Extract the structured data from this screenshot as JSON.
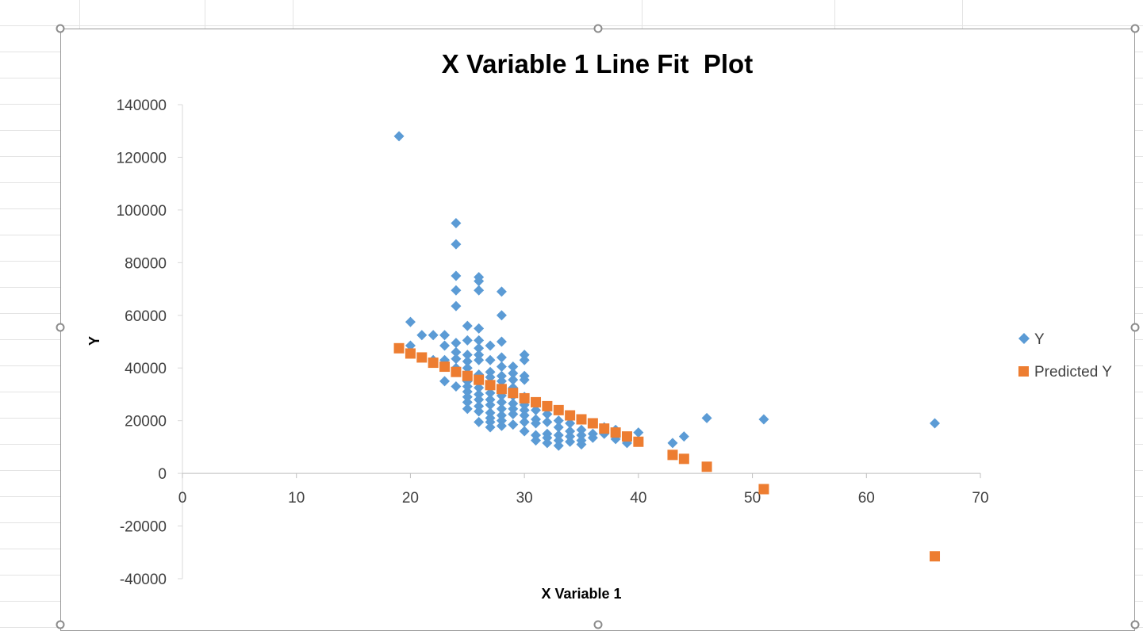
{
  "chart_data": {
    "type": "scatter",
    "title": "X Variable 1 Line Fit  Plot",
    "xlabel": "X Variable 1",
    "ylabel": "Y",
    "xlim": [
      0,
      70
    ],
    "ylim": [
      -40000,
      140000
    ],
    "xticks": [
      0,
      10,
      20,
      30,
      40,
      50,
      60,
      70
    ],
    "yticks": [
      -40000,
      -20000,
      0,
      20000,
      40000,
      60000,
      80000,
      100000,
      120000,
      140000
    ],
    "grid": false,
    "legend_position": "right",
    "series": [
      {
        "name": "Y",
        "marker": "diamond",
        "color": "#5B9BD5",
        "points": [
          [
            19,
            128000
          ],
          [
            20,
            57500
          ],
          [
            20,
            48500
          ],
          [
            21,
            52500
          ],
          [
            22,
            52500
          ],
          [
            22,
            43000
          ],
          [
            23,
            52500
          ],
          [
            23,
            48500
          ],
          [
            23,
            43000
          ],
          [
            23,
            35000
          ],
          [
            24,
            95000
          ],
          [
            24,
            87000
          ],
          [
            24,
            75000
          ],
          [
            24,
            69500
          ],
          [
            24,
            63500
          ],
          [
            24,
            49500
          ],
          [
            24,
            46000
          ],
          [
            24,
            43500
          ],
          [
            24,
            40000
          ],
          [
            24,
            33000
          ],
          [
            25,
            56000
          ],
          [
            25,
            50500
          ],
          [
            25,
            45000
          ],
          [
            25,
            42500
          ],
          [
            25,
            40000
          ],
          [
            25,
            37500
          ],
          [
            25,
            35000
          ],
          [
            25,
            33000
          ],
          [
            25,
            31000
          ],
          [
            25,
            29000
          ],
          [
            25,
            27000
          ],
          [
            25,
            24500
          ],
          [
            26,
            74500
          ],
          [
            26,
            73000
          ],
          [
            26,
            69500
          ],
          [
            26,
            55000
          ],
          [
            26,
            50500
          ],
          [
            26,
            47500
          ],
          [
            26,
            45000
          ],
          [
            26,
            43000
          ],
          [
            26,
            37500
          ],
          [
            26,
            35000
          ],
          [
            26,
            32500
          ],
          [
            26,
            30000
          ],
          [
            26,
            28000
          ],
          [
            26,
            25500
          ],
          [
            26,
            23500
          ],
          [
            26,
            19500
          ],
          [
            27,
            48500
          ],
          [
            27,
            43000
          ],
          [
            27,
            38500
          ],
          [
            27,
            36500
          ],
          [
            27,
            33000
          ],
          [
            27,
            30500
          ],
          [
            27,
            28000
          ],
          [
            27,
            26000
          ],
          [
            27,
            23000
          ],
          [
            27,
            21000
          ],
          [
            27,
            19500
          ],
          [
            27,
            17500
          ],
          [
            28,
            69000
          ],
          [
            28,
            60000
          ],
          [
            28,
            50000
          ],
          [
            28,
            44000
          ],
          [
            28,
            40500
          ],
          [
            28,
            37000
          ],
          [
            28,
            35000
          ],
          [
            28,
            32000
          ],
          [
            28,
            29500
          ],
          [
            28,
            27000
          ],
          [
            28,
            24500
          ],
          [
            28,
            22000
          ],
          [
            28,
            20000
          ],
          [
            28,
            18000
          ],
          [
            29,
            40500
          ],
          [
            29,
            38000
          ],
          [
            29,
            35500
          ],
          [
            29,
            32500
          ],
          [
            29,
            29500
          ],
          [
            29,
            26500
          ],
          [
            29,
            24500
          ],
          [
            29,
            22500
          ],
          [
            29,
            18500
          ],
          [
            30,
            45000
          ],
          [
            30,
            43000
          ],
          [
            30,
            37000
          ],
          [
            30,
            35500
          ],
          [
            30,
            29000
          ],
          [
            30,
            26000
          ],
          [
            30,
            24000
          ],
          [
            30,
            22000
          ],
          [
            30,
            19500
          ],
          [
            30,
            16000
          ],
          [
            31,
            24000
          ],
          [
            31,
            20500
          ],
          [
            31,
            19000
          ],
          [
            31,
            14500
          ],
          [
            31,
            12500
          ],
          [
            32,
            22500
          ],
          [
            32,
            19500
          ],
          [
            32,
            15000
          ],
          [
            32,
            13500
          ],
          [
            32,
            11500
          ],
          [
            33,
            20000
          ],
          [
            33,
            17500
          ],
          [
            33,
            14500
          ],
          [
            33,
            12500
          ],
          [
            33,
            10500
          ],
          [
            34,
            19000
          ],
          [
            34,
            16000
          ],
          [
            34,
            14000
          ],
          [
            34,
            12000
          ],
          [
            35,
            16500
          ],
          [
            35,
            14500
          ],
          [
            35,
            12500
          ],
          [
            35,
            11000
          ],
          [
            36,
            15000
          ],
          [
            36,
            13500
          ],
          [
            37,
            17500
          ],
          [
            37,
            15000
          ],
          [
            38,
            16500
          ],
          [
            38,
            13000
          ],
          [
            39,
            11500
          ],
          [
            40,
            15500
          ],
          [
            43,
            11500
          ],
          [
            44,
            14000
          ],
          [
            46,
            21000
          ],
          [
            51,
            20500
          ],
          [
            66,
            19000
          ]
        ]
      },
      {
        "name": "Predicted Y",
        "marker": "square",
        "color": "#ED7D31",
        "points": [
          [
            19,
            47500
          ],
          [
            20,
            45500
          ],
          [
            21,
            44000
          ],
          [
            22,
            42000
          ],
          [
            23,
            40500
          ],
          [
            24,
            38500
          ],
          [
            25,
            37000
          ],
          [
            26,
            35500
          ],
          [
            27,
            33500
          ],
          [
            28,
            32000
          ],
          [
            29,
            30500
          ],
          [
            30,
            28500
          ],
          [
            31,
            27000
          ],
          [
            32,
            25500
          ],
          [
            33,
            24000
          ],
          [
            34,
            22000
          ],
          [
            35,
            20500
          ],
          [
            36,
            19000
          ],
          [
            37,
            17000
          ],
          [
            38,
            15500
          ],
          [
            39,
            14000
          ],
          [
            40,
            12000
          ],
          [
            43,
            7000
          ],
          [
            44,
            5500
          ],
          [
            46,
            2500
          ],
          [
            51,
            -6000
          ],
          [
            66,
            -31500
          ]
        ]
      }
    ]
  }
}
